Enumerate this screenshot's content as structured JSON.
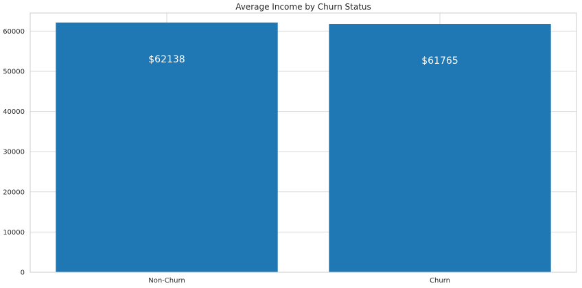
{
  "chart_data": {
    "type": "bar",
    "title": "Average Income by Churn Status",
    "xlabel": "",
    "ylabel": "",
    "categories": [
      "Non-Churn",
      "Churn"
    ],
    "values": [
      62138,
      61765
    ],
    "data_labels": [
      "$62138",
      "$61765"
    ],
    "ylim": [
      0,
      64500
    ],
    "yticks": [
      0,
      10000,
      20000,
      30000,
      40000,
      50000,
      60000
    ],
    "ytick_labels": [
      "0",
      "10000",
      "20000",
      "30000",
      "40000",
      "50000",
      "60000"
    ],
    "grid": true,
    "legend": "none",
    "bar_color": "#1f77b4",
    "grid_color": "#d9d9d9",
    "spine_color": "#cccccc"
  }
}
